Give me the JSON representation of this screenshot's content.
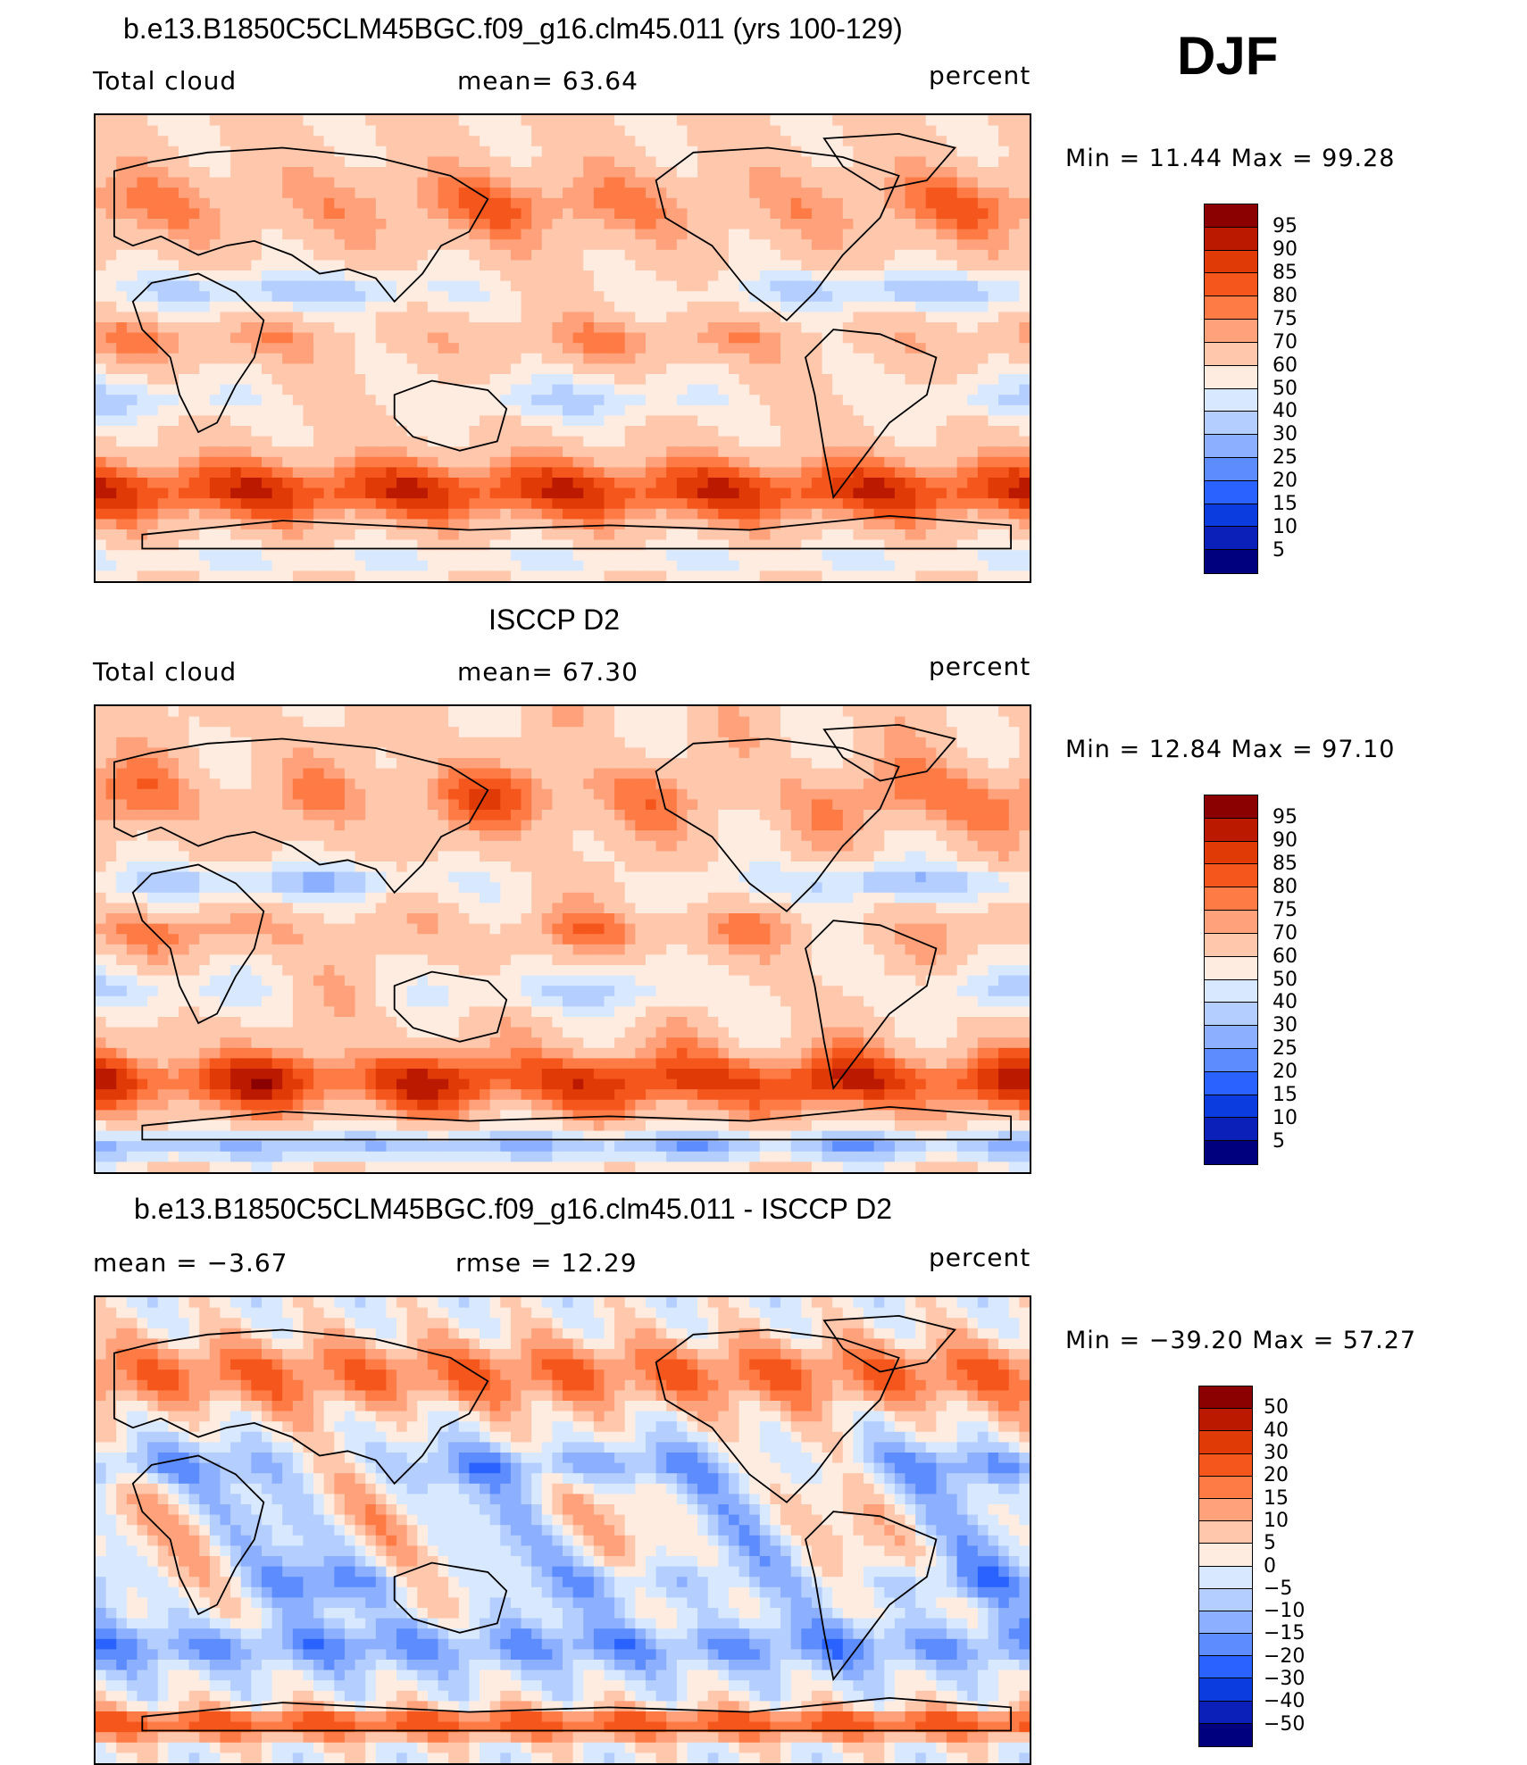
{
  "season": "DJF",
  "panels": [
    {
      "id": "model",
      "title": "b.e13.B1850C5CLM45BGC.f09_g16.clm45.011 (yrs 100-129)",
      "left_label": "Total cloud",
      "center_label": "mean=   63.64",
      "units": "percent",
      "minmax": "Min =   11.44  Max =   99.28",
      "colorbar": {
        "labels": [
          "95",
          "90",
          "85",
          "80",
          "75",
          "70",
          "60",
          "50",
          "40",
          "30",
          "25",
          "20",
          "15",
          "10",
          "5"
        ],
        "colors": [
          "#8b0000",
          "#bb1a00",
          "#e03a06",
          "#f5561c",
          "#ff7b46",
          "#ffa17a",
          "#ffc8ad",
          "#ffece0",
          "#d7e8ff",
          "#b3ceff",
          "#8cb0ff",
          "#5d8cff",
          "#2a62ff",
          "#0b3ce0",
          "#0a20b8",
          "#00007f"
        ]
      }
    },
    {
      "id": "obs",
      "title": "ISCCP D2",
      "left_label": "Total cloud",
      "center_label": "mean=   67.30",
      "units": "percent",
      "minmax": "Min =   12.84  Max =   97.10",
      "colorbar": {
        "labels": [
          "95",
          "90",
          "85",
          "80",
          "75",
          "70",
          "60",
          "50",
          "40",
          "30",
          "25",
          "20",
          "15",
          "10",
          "5"
        ],
        "colors": [
          "#8b0000",
          "#bb1a00",
          "#e03a06",
          "#f5561c",
          "#ff7b46",
          "#ffa17a",
          "#ffc8ad",
          "#ffece0",
          "#d7e8ff",
          "#b3ceff",
          "#8cb0ff",
          "#5d8cff",
          "#2a62ff",
          "#0b3ce0",
          "#0a20b8",
          "#00007f"
        ]
      }
    },
    {
      "id": "diff",
      "title": "b.e13.B1850C5CLM45BGC.f09_g16.clm45.011 - ISCCP D2",
      "left_label": "mean =   −3.67",
      "center_label": "rmse =   12.29",
      "units": "percent",
      "minmax": "Min = −39.20  Max =   57.27",
      "colorbar": {
        "labels": [
          "50",
          "40",
          "30",
          "20",
          "15",
          "10",
          "5",
          "0",
          "−5",
          "−10",
          "−15",
          "−20",
          "−30",
          "−40",
          "−50"
        ],
        "colors": [
          "#8b0000",
          "#bb1a00",
          "#e03a06",
          "#f5561c",
          "#ff7b46",
          "#ffa17a",
          "#ffc8ad",
          "#ffece0",
          "#d7e8ff",
          "#b3ceff",
          "#8cb0ff",
          "#5d8cff",
          "#2a62ff",
          "#0b3ce0",
          "#0a20b8",
          "#00007f"
        ]
      }
    }
  ],
  "chart_data": [
    {
      "type": "heatmap",
      "title": "b.e13.B1850C5CLM45BGC.f09_g16.clm45.011 (yrs 100-129)",
      "field": "Total cloud",
      "units": "percent",
      "mean": 63.64,
      "min": 11.44,
      "max": 99.28,
      "levels": [
        5,
        10,
        15,
        20,
        25,
        30,
        40,
        50,
        60,
        70,
        75,
        80,
        85,
        90,
        95
      ],
      "projection": "cylindrical equidistant, global"
    },
    {
      "type": "heatmap",
      "title": "ISCCP D2",
      "field": "Total cloud",
      "units": "percent",
      "mean": 67.3,
      "min": 12.84,
      "max": 97.1,
      "levels": [
        5,
        10,
        15,
        20,
        25,
        30,
        40,
        50,
        60,
        70,
        75,
        80,
        85,
        90,
        95
      ],
      "projection": "cylindrical equidistant, global"
    },
    {
      "type": "heatmap",
      "title": "b.e13.B1850C5CLM45BGC.f09_g16.clm45.011 - ISCCP D2",
      "units": "percent",
      "mean": -3.67,
      "rmse": 12.29,
      "min": -39.2,
      "max": 57.27,
      "levels": [
        -50,
        -40,
        -30,
        -20,
        -15,
        -10,
        -5,
        0,
        5,
        10,
        15,
        20,
        30,
        40,
        50
      ],
      "projection": "cylindrical equidistant, global"
    }
  ]
}
